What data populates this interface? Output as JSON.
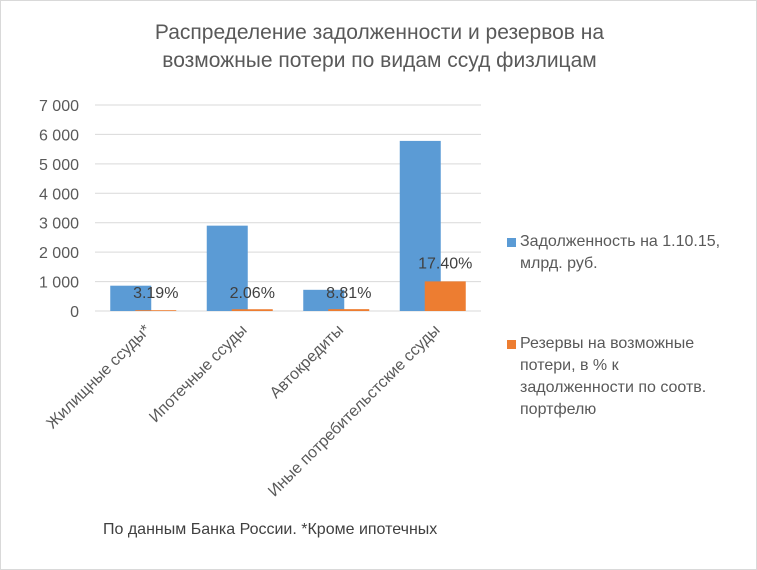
{
  "chart_data": {
    "type": "bar",
    "title": "Распределение задолженности и резервов на возможные потери по видам ссуд физлицам",
    "title_lines": [
      "Распределение задолженности и резервов на",
      "возможные потери по видам ссуд физлицам"
    ],
    "categories": [
      "Жилищные ссуды*",
      "Ипотечные ссуды",
      "Автокредиты",
      "Иные потребительстские ссуды"
    ],
    "series": [
      {
        "name": "Задолженность на 1.10.15, млрд. руб.",
        "color": "#5B9BD5",
        "values": [
          860,
          2900,
          720,
          5780
        ]
      },
      {
        "name": "Резервы на возможные потери, в % к задолженности по соотв. портфелю",
        "color": "#ED7D31",
        "values": [
          27,
          60,
          63,
          1006
        ],
        "data_labels": [
          "3.19%",
          "2.06%",
          "8.81%",
          "17.40%"
        ]
      }
    ],
    "yticks": [
      "0",
      "1 000",
      "2 000",
      "3 000",
      "4 000",
      "5 000",
      "6 000",
      "7 000"
    ],
    "ylim": [
      0,
      7000
    ],
    "grid": true,
    "legend_placement": "right",
    "legend_lines": [
      [
        "Задолженность на 1.10.15,",
        "млрд. руб."
      ],
      [
        "Резервы на возможные",
        "потери, в % к",
        "задолженности по соотв.",
        "портфелю"
      ]
    ]
  },
  "note": "По данным Банка России. *Кроме ипотечных"
}
